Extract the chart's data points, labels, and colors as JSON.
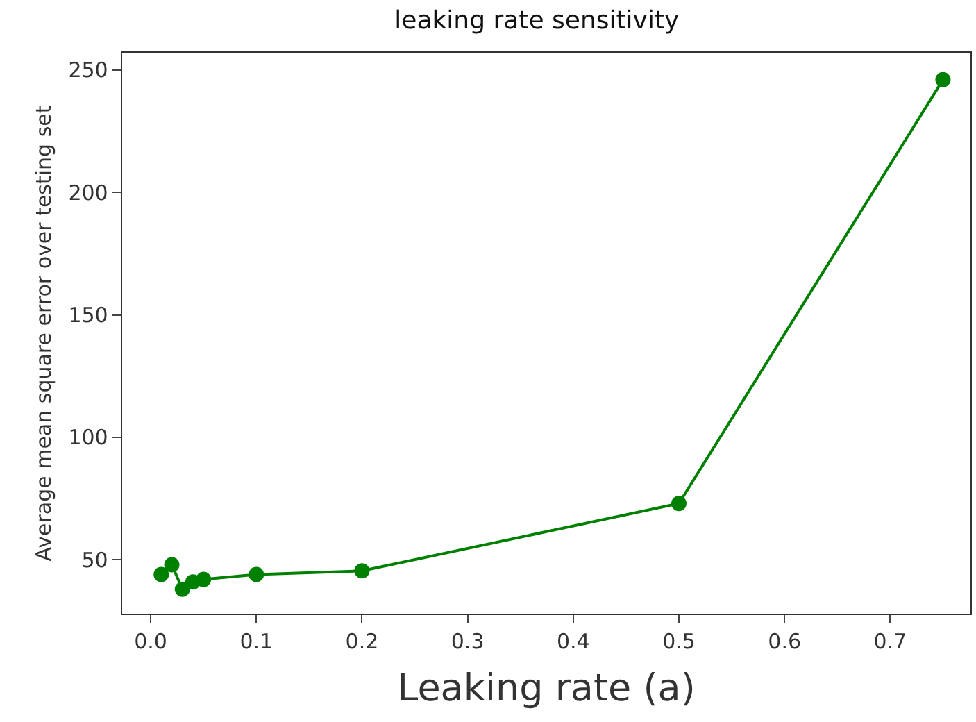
{
  "chart_data": {
    "type": "line",
    "title": "leaking rate sensitivity",
    "xlabel": "Leaking rate (a)",
    "ylabel": "Average mean square error over testing set",
    "x": [
      0.01,
      0.02,
      0.03,
      0.04,
      0.05,
      0.1,
      0.2,
      0.5,
      0.75
    ],
    "series": [
      {
        "color": "#008000",
        "values": [
          44,
          48,
          38,
          41,
          42,
          44,
          45.5,
          73,
          246
        ]
      }
    ],
    "xlim": [
      -0.027,
      0.776
    ],
    "ylim": [
      28,
      257
    ],
    "xticks": [
      {
        "value": 0,
        "label": "0.0"
      },
      0.1,
      0.2,
      0.3,
      0.4,
      0.5,
      0.6,
      0.7
    ],
    "yticks": [
      50,
      100,
      150,
      200,
      250
    ],
    "legend": false,
    "marker": "circle",
    "line_style": "solid"
  }
}
